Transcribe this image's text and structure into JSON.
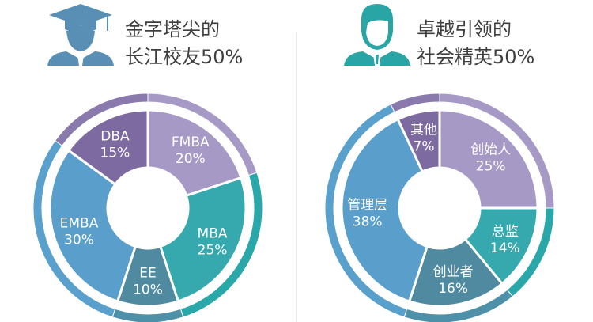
{
  "chart_data": [
    {
      "type": "pie",
      "title_lines": [
        "金字塔尖的",
        "长江校友50%"
      ],
      "icon": "graduate-icon",
      "icon_color": "#5a8fb5",
      "slices": [
        {
          "label": "FMBA",
          "value": 20,
          "value_label": "20%",
          "color": "#a799c6",
          "ring_color": "#a799c6"
        },
        {
          "label": "MBA",
          "value": 25,
          "value_label": "25%",
          "color": "#36a9ae",
          "ring_color": "#2aa7a8"
        },
        {
          "label": "EE",
          "value": 10,
          "value_label": "10%",
          "color": "#4f8aa0",
          "ring_color": "#4d90a7"
        },
        {
          "label": "EMBA",
          "value": 30,
          "value_label": "30%",
          "color": "#5a9fcc",
          "ring_color": "#5aa0cd"
        },
        {
          "label": "DBA",
          "value": 15,
          "value_label": "15%",
          "color": "#7d6aa0",
          "ring_color": "#8a79ac"
        }
      ]
    },
    {
      "type": "pie",
      "title_lines": [
        "卓越引领的",
        "社会精英50%"
      ],
      "icon": "businessman-icon",
      "icon_color": "#2aa5a5",
      "slices": [
        {
          "label": "创始人",
          "value": 25,
          "value_label": "25%",
          "color": "#a799c6",
          "ring_color": "#a799c6"
        },
        {
          "label": "总监",
          "value": 14,
          "value_label": "14%",
          "color": "#36a9ae",
          "ring_color": "#2aa7a8"
        },
        {
          "label": "创业者",
          "value": 16,
          "value_label": "16%",
          "color": "#4f8aa0",
          "ring_color": "#4d90a7"
        },
        {
          "label": "管理层",
          "value": 38,
          "value_label": "38%",
          "color": "#5a9fcc",
          "ring_color": "#5aa0cd"
        },
        {
          "label": "其他",
          "value": 7,
          "value_label": "7%",
          "color": "#7d6aa0",
          "ring_color": "#8a79ac"
        }
      ]
    }
  ]
}
